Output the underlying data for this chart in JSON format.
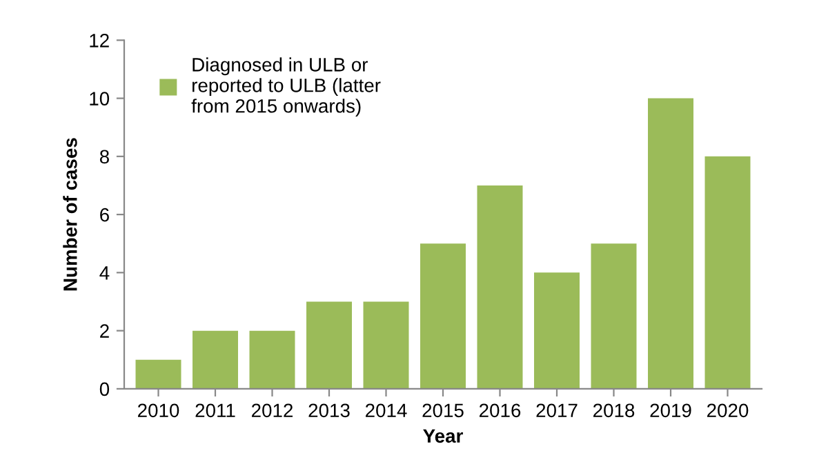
{
  "chart_data": {
    "type": "bar",
    "xlabel": "Year",
    "ylabel": "Number of cases",
    "categories": [
      "2010",
      "2011",
      "2012",
      "2013",
      "2014",
      "2015",
      "2016",
      "2017",
      "2018",
      "2019",
      "2020"
    ],
    "series": [
      {
        "name": "Diagnosed in ULB or\nreported to ULB (latter\nfrom 2015 onwards)",
        "color": "#9bbb59",
        "values": [
          1,
          2,
          2,
          3,
          3,
          5,
          7,
          4,
          5,
          10,
          8
        ]
      }
    ],
    "ylim": [
      0,
      12
    ],
    "yticks": [
      0,
      2,
      4,
      6,
      8,
      10,
      12
    ],
    "grid": false,
    "legend": "top left"
  }
}
